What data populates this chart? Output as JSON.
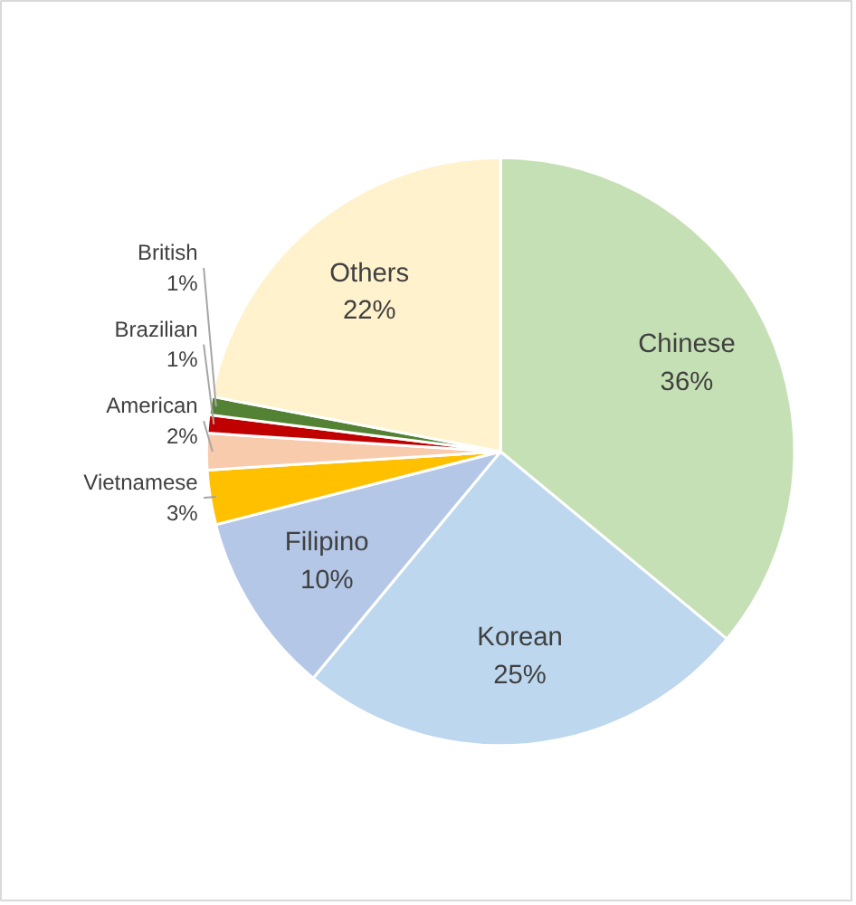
{
  "chart_data": {
    "type": "pie",
    "categories": [
      "Chinese",
      "Korean",
      "Filipino",
      "Vietnamese",
      "American",
      "Brazilian",
      "British",
      "Others"
    ],
    "values": [
      36,
      25,
      10,
      3,
      2,
      1,
      1,
      22
    ],
    "value_labels": [
      "36%",
      "25%",
      "10%",
      "3%",
      "2%",
      "1%",
      "1%",
      "22%"
    ],
    "colors": [
      "#c5e0b4",
      "#bdd7ee",
      "#b4c7e7",
      "#ffc000",
      "#f8cbad",
      "#c00000",
      "#548235",
      "#fff2cc"
    ],
    "legend": false
  }
}
